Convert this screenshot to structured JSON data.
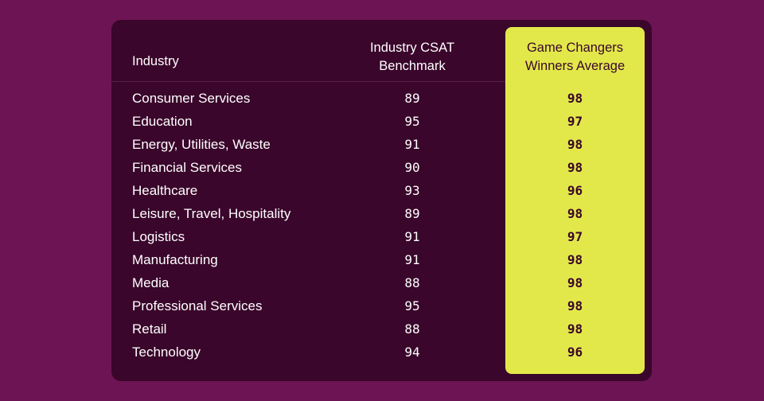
{
  "colors": {
    "background": "#6d1454",
    "card": "#3a062b",
    "highlight": "#e2e84a",
    "text_light": "#ffffff",
    "text_dark": "#3a062b"
  },
  "chart_data": {
    "type": "table",
    "columns": [
      "Industry",
      "Industry CSAT Benchmark",
      "Game Changers Winners Average"
    ],
    "header_lines": {
      "industry": [
        "Industry"
      ],
      "benchmark": [
        "Industry CSAT",
        "Benchmark"
      ],
      "winners": [
        "Game Changers",
        "Winners Average"
      ]
    },
    "rows": [
      {
        "industry": "Consumer Services",
        "benchmark": 89,
        "winners": 98
      },
      {
        "industry": "Education",
        "benchmark": 95,
        "winners": 97
      },
      {
        "industry": "Energy, Utilities, Waste",
        "benchmark": 91,
        "winners": 98
      },
      {
        "industry": "Financial Services",
        "benchmark": 90,
        "winners": 98
      },
      {
        "industry": "Healthcare",
        "benchmark": 93,
        "winners": 96
      },
      {
        "industry": "Leisure, Travel, Hospitality",
        "benchmark": 89,
        "winners": 98
      },
      {
        "industry": "Logistics",
        "benchmark": 91,
        "winners": 97
      },
      {
        "industry": "Manufacturing",
        "benchmark": 91,
        "winners": 98
      },
      {
        "industry": "Media",
        "benchmark": 88,
        "winners": 98
      },
      {
        "industry": "Professional Services",
        "benchmark": 95,
        "winners": 98
      },
      {
        "industry": "Retail",
        "benchmark": 88,
        "winners": 98
      },
      {
        "industry": "Technology",
        "benchmark": 94,
        "winners": 96
      }
    ]
  }
}
